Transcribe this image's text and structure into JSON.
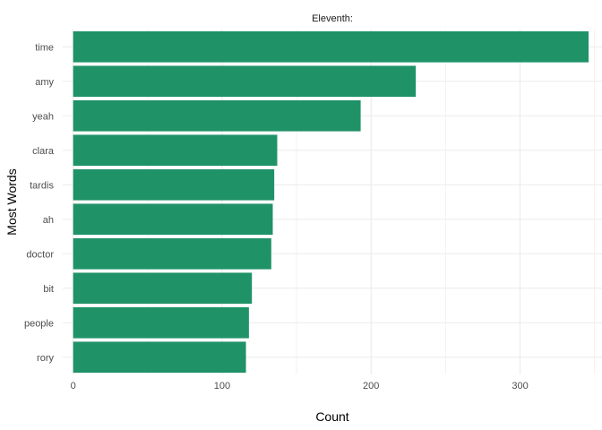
{
  "chart_data": {
    "type": "bar",
    "orientation": "horizontal",
    "title": "Eleventh:",
    "xlabel": "Count",
    "ylabel": "Most Words",
    "categories": [
      "time",
      "amy",
      "yeah",
      "clara",
      "tardis",
      "ah",
      "doctor",
      "bit",
      "people",
      "rory"
    ],
    "values": [
      346,
      230,
      193,
      137,
      135,
      134,
      133,
      120,
      118,
      116
    ],
    "xlim": [
      -7,
      355
    ],
    "xticks": [
      0,
      100,
      200,
      300
    ],
    "xtick_labels": [
      "0",
      "100",
      "200",
      "300"
    ],
    "grid": true,
    "legend": "none",
    "bar_color": "#1f9268",
    "grid_color": "#ebebeb"
  }
}
